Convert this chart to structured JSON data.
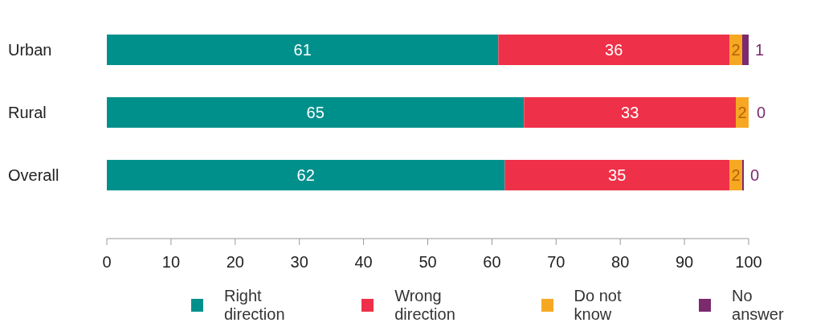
{
  "chart_data": {
    "type": "bar",
    "orientation": "horizontal",
    "stacked": true,
    "categories": [
      "Urban",
      "Rural",
      "Overall"
    ],
    "series": [
      {
        "name": "Right direction",
        "color": "#00908c",
        "values": [
          61,
          65,
          62
        ]
      },
      {
        "name": "Wrong direction",
        "color": "#ee3148",
        "values": [
          36,
          33,
          35
        ]
      },
      {
        "name": "Do not know",
        "color": "#f7a823",
        "values": [
          2,
          2,
          2
        ]
      },
      {
        "name": "No answer",
        "color": "#7b2a6e",
        "values": [
          1,
          0,
          0
        ]
      }
    ],
    "xlim": [
      0,
      100
    ],
    "xticks": [
      0,
      10,
      20,
      30,
      40,
      50,
      60,
      70,
      80,
      90,
      100
    ],
    "grid": false,
    "legend": "bottom",
    "data_labels": true
  }
}
